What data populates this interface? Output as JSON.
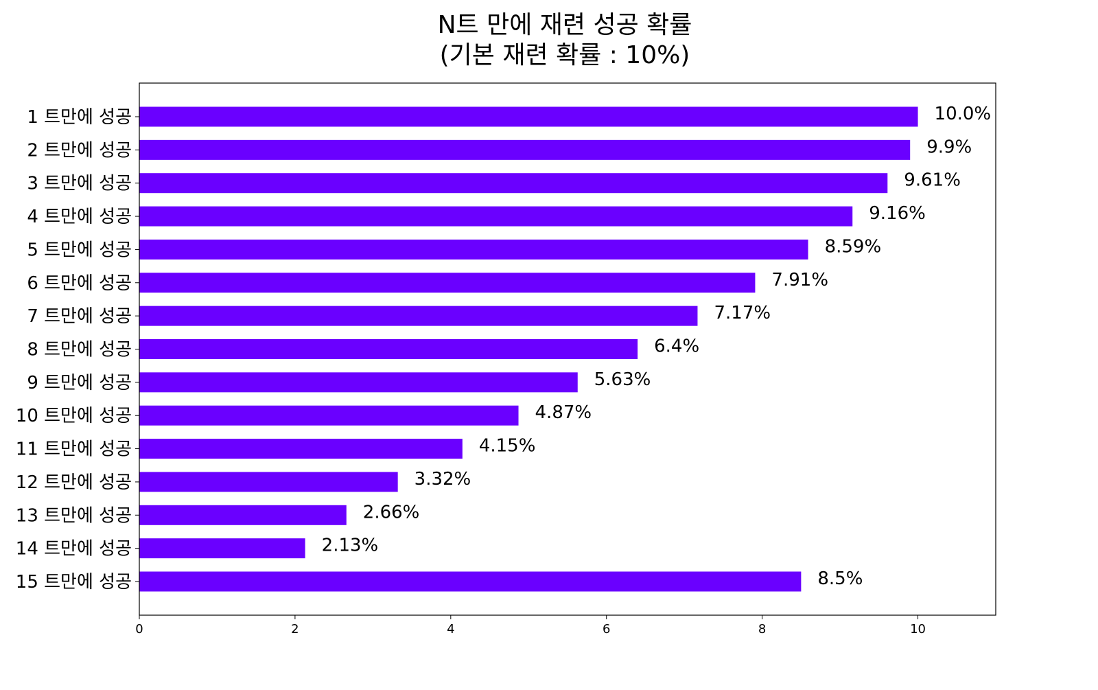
{
  "chart_data": {
    "type": "bar",
    "orientation": "horizontal",
    "title": "N트 만에 재련 성공 확률",
    "subtitle": "(기본 재련 확률 : 10%)",
    "categories": [
      "1 트만에 성공",
      "2 트만에 성공",
      "3 트만에 성공",
      "4 트만에 성공",
      "5 트만에 성공",
      "6 트만에 성공",
      "7 트만에 성공",
      "8 트만에 성공",
      "9 트만에 성공",
      "10 트만에 성공",
      "11 트만에 성공",
      "12 트만에 성공",
      "13 트만에 성공",
      "14 트만에 성공",
      "15 트만에 성공"
    ],
    "values": [
      10.0,
      9.9,
      9.61,
      9.16,
      8.59,
      7.91,
      7.17,
      6.4,
      5.63,
      4.87,
      4.15,
      3.32,
      2.66,
      2.13,
      8.5
    ],
    "value_labels": [
      "10.0%",
      "9.9%",
      "9.61%",
      "9.16%",
      "8.59%",
      "7.91%",
      "7.17%",
      "6.4%",
      "5.63%",
      "4.87%",
      "4.15%",
      "3.32%",
      "2.66%",
      "2.13%",
      "8.5%"
    ],
    "xlim": [
      0,
      11
    ],
    "xticks": [
      0,
      2,
      4,
      6,
      8,
      10
    ],
    "xlabel": "",
    "ylabel": "",
    "grid": false,
    "bar_color": "#6A00FF"
  }
}
